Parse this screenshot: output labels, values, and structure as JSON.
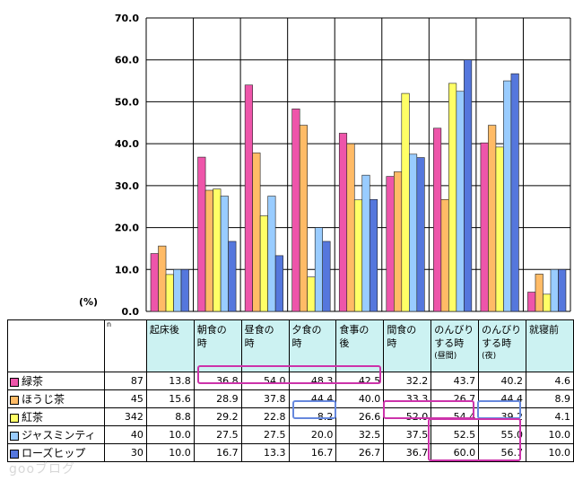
{
  "chart_data": {
    "type": "bar",
    "categories": [
      "起床後",
      "朝食の時",
      "昼食の時",
      "夕食の時",
      "食事の後",
      "間食の時",
      "のんびりする時(昼間)",
      "のんびりする時(夜)",
      "就寝前"
    ],
    "category_lines": [
      [
        "起床後"
      ],
      [
        "朝食の",
        "時"
      ],
      [
        "昼食の",
        "時"
      ],
      [
        "夕食の",
        "時"
      ],
      [
        "食事の",
        "後"
      ],
      [
        "間食の",
        "時"
      ],
      [
        "のんびり",
        "する時",
        "(昼間)"
      ],
      [
        "のんびり",
        "する時",
        "(夜)"
      ],
      [
        "就寝前"
      ]
    ],
    "series": [
      {
        "name": "緑茶",
        "n": 87,
        "color": "#ee55aa",
        "values": [
          13.8,
          36.8,
          54.0,
          48.3,
          42.5,
          32.2,
          43.7,
          40.2,
          4.6
        ]
      },
      {
        "name": "ほうじ茶",
        "n": 45,
        "color": "#ffbb66",
        "values": [
          15.6,
          28.9,
          37.8,
          44.4,
          40.0,
          33.3,
          26.7,
          44.4,
          8.9
        ]
      },
      {
        "name": "紅茶",
        "n": 342,
        "color": "#ffff66",
        "values": [
          8.8,
          29.2,
          22.8,
          8.2,
          26.6,
          52.0,
          54.4,
          39.2,
          4.1
        ]
      },
      {
        "name": "ジャスミンティ",
        "n": 40,
        "color": "#99ccff",
        "values": [
          10.0,
          27.5,
          27.5,
          20.0,
          32.5,
          37.5,
          52.5,
          55.0,
          10.0
        ]
      },
      {
        "name": "ローズヒップ",
        "n": 30,
        "color": "#5577dd",
        "values": [
          10.0,
          16.7,
          13.3,
          16.7,
          26.7,
          36.7,
          60.0,
          56.7,
          10.0
        ]
      }
    ],
    "ylim": [
      0,
      70
    ],
    "yticks": [
      "0.0",
      "10.0",
      "20.0",
      "30.0",
      "40.0",
      "50.0",
      "60.0",
      "70.0"
    ],
    "ylabel": "(%)",
    "n_header": "n",
    "highlight_colors": {
      "pink": "#cc33aa",
      "blue": "#6688dd"
    }
  },
  "watermark": "gooブログ"
}
